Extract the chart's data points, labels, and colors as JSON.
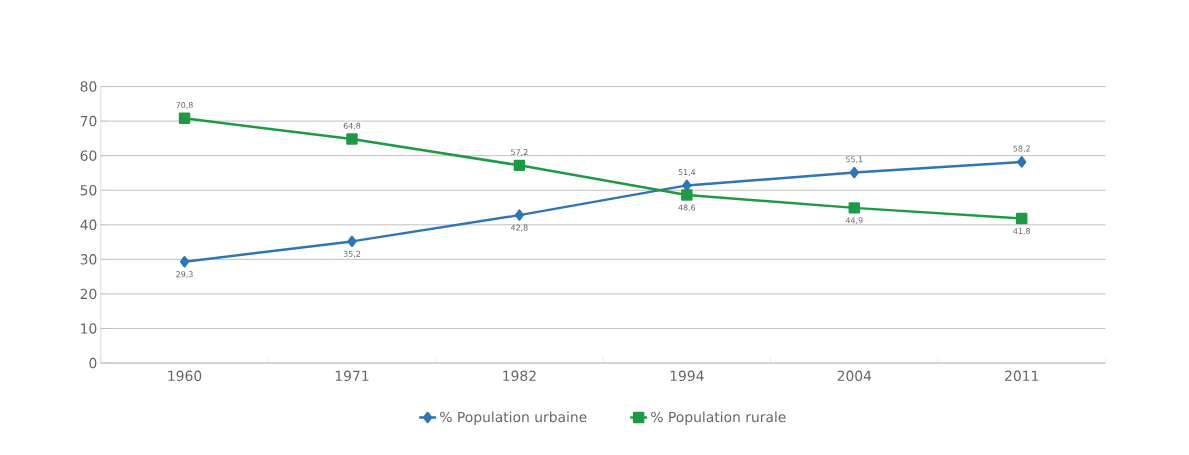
{
  "chart_data": {
    "type": "line",
    "categories": [
      "1960",
      "1971",
      "1982",
      "1994",
      "2004",
      "2011"
    ],
    "series": [
      {
        "name": "% Population urbaine",
        "color": "#2e75b6",
        "marker": "diamond",
        "values": [
          29.3,
          35.2,
          42.8,
          51.4,
          55.1,
          58.2
        ],
        "value_labels": [
          "29,3",
          "35,2",
          "42,8",
          "51,4",
          "55,1",
          "58,2"
        ]
      },
      {
        "name": "% Population rurale",
        "color": "#1e9a46",
        "marker": "square",
        "values": [
          70.8,
          64.8,
          57.2,
          48.6,
          44.9,
          41.8
        ],
        "value_labels": [
          "70,8",
          "64,8",
          "57,2",
          "48,6",
          "44,9",
          "41,8"
        ]
      }
    ],
    "ylim": [
      0,
      80
    ],
    "yticks": [
      0,
      10,
      20,
      30,
      40,
      50,
      60,
      70,
      80
    ],
    "grid": "y",
    "legend": "bottom"
  }
}
